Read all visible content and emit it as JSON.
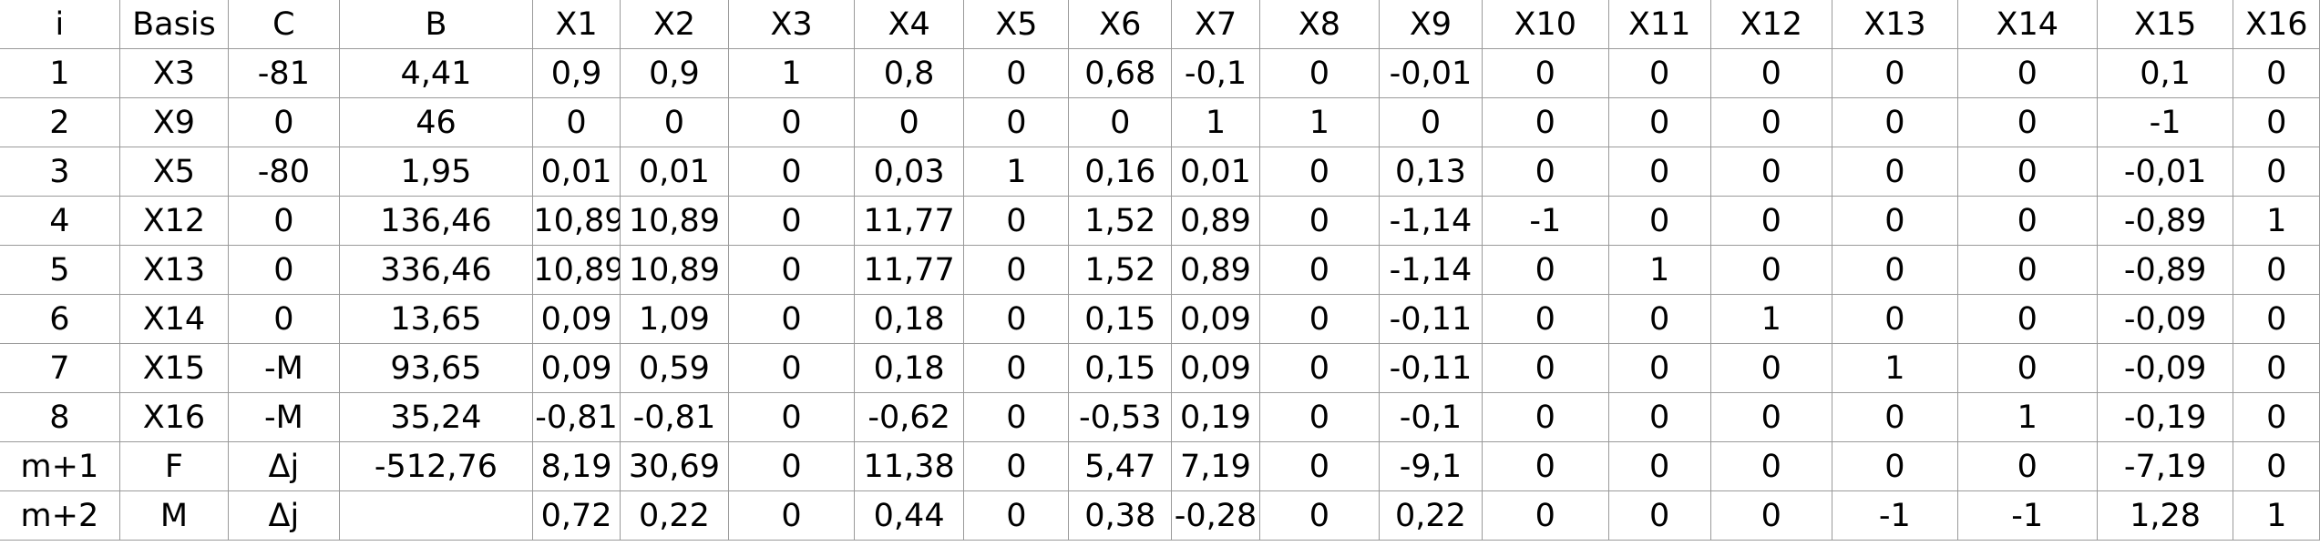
{
  "table": {
    "headers": [
      "i",
      "Basis",
      "C",
      "B",
      "X1",
      "X2",
      "X3",
      "X4",
      "X5",
      "X6",
      "X7",
      "X8",
      "X9",
      "X10",
      "X11",
      "X12",
      "X13",
      "X14",
      "X15",
      "X16"
    ],
    "rows": [
      [
        "1",
        "X3",
        "-81",
        "4,41",
        "0,9",
        "0,9",
        "1",
        "0,8",
        "0",
        "0,68",
        "-0,1",
        "0",
        "-0,01",
        "0",
        "0",
        "0",
        "0",
        "0",
        "0,1",
        "0"
      ],
      [
        "2",
        "X9",
        "0",
        "46",
        "0",
        "0",
        "0",
        "0",
        "0",
        "0",
        "1",
        "1",
        "0",
        "0",
        "0",
        "0",
        "0",
        "0",
        "-1",
        "0"
      ],
      [
        "3",
        "X5",
        "-80",
        "1,95",
        "0,01",
        "0,01",
        "0",
        "0,03",
        "1",
        "0,16",
        "0,01",
        "0",
        "0,13",
        "0",
        "0",
        "0",
        "0",
        "0",
        "-0,01",
        "0"
      ],
      [
        "4",
        "X12",
        "0",
        "136,46",
        "10,89",
        "10,89",
        "0",
        "11,77",
        "0",
        "1,52",
        "0,89",
        "0",
        "-1,14",
        "-1",
        "0",
        "0",
        "0",
        "0",
        "-0,89",
        "1"
      ],
      [
        "5",
        "X13",
        "0",
        "336,46",
        "10,89",
        "10,89",
        "0",
        "11,77",
        "0",
        "1,52",
        "0,89",
        "0",
        "-1,14",
        "0",
        "1",
        "0",
        "0",
        "0",
        "-0,89",
        "0"
      ],
      [
        "6",
        "X14",
        "0",
        "13,65",
        "0,09",
        "1,09",
        "0",
        "0,18",
        "0",
        "0,15",
        "0,09",
        "0",
        "-0,11",
        "0",
        "0",
        "1",
        "0",
        "0",
        "-0,09",
        "0"
      ],
      [
        "7",
        "X15",
        "-M",
        "93,65",
        "0,09",
        "0,59",
        "0",
        "0,18",
        "0",
        "0,15",
        "0,09",
        "0",
        "-0,11",
        "0",
        "0",
        "0",
        "1",
        "0",
        "-0,09",
        "0"
      ],
      [
        "8",
        "X16",
        "-M",
        "35,24",
        "-0,81",
        "-0,81",
        "0",
        "-0,62",
        "0",
        "-0,53",
        "0,19",
        "0",
        "-0,1",
        "0",
        "0",
        "0",
        "0",
        "1",
        "-0,19",
        "0"
      ],
      [
        "m+1",
        "F",
        "Δj",
        "-512,76",
        "8,19",
        "30,69",
        "0",
        "11,38",
        "0",
        "5,47",
        "7,19",
        "0",
        "-9,1",
        "0",
        "0",
        "0",
        "0",
        "0",
        "-7,19",
        "0"
      ],
      [
        "m+2",
        "M",
        "Δj",
        "",
        "0,72",
        "0,22",
        "0",
        "0,44",
        "0",
        "0,38",
        "-0,28",
        "0",
        "0,22",
        "0",
        "0",
        "0",
        "-1",
        "-1",
        "1,28",
        "1"
      ]
    ]
  }
}
